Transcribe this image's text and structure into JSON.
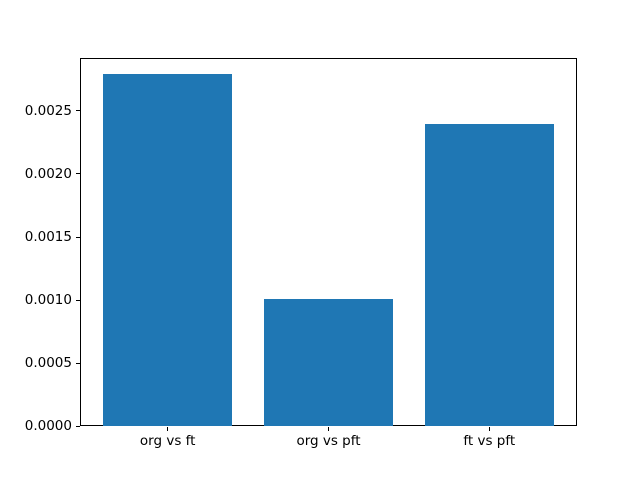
{
  "figure": {
    "background": "#ffffff",
    "spine_color": "#000000",
    "tick_color": "#000000",
    "text_color": "#000000"
  },
  "chart_data": {
    "type": "bar",
    "title": "",
    "xlabel": "",
    "ylabel": "",
    "categories": [
      "org vs ft",
      "org vs pft",
      "ft vs pft"
    ],
    "values": [
      0.00279,
      0.00101,
      0.0024
    ],
    "bar_color": "#1f77b4",
    "bar_width_fraction": 0.8,
    "ylim": [
      0,
      0.00292
    ],
    "yticks": [
      0,
      0.0005,
      0.001,
      0.0015,
      0.002,
      0.0025
    ],
    "ytick_labels": [
      "0.0000",
      "0.0005",
      "0.0010",
      "0.0015",
      "0.0020",
      "0.0025"
    ],
    "grid": false,
    "legend": "none"
  }
}
